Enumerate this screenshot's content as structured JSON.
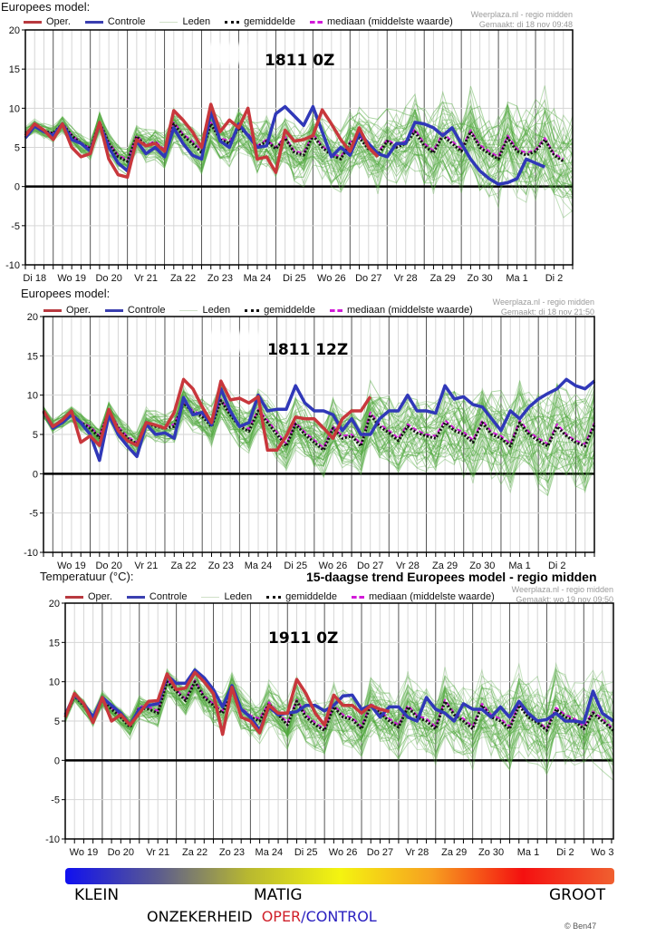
{
  "page": {
    "color_scale": {
      "colors": [
        "#1010f0",
        "#5a5a90",
        "#b8b830",
        "#f4f410",
        "#f7a020",
        "#f41010",
        "#f06030"
      ],
      "labels": {
        "low": "KLEIN",
        "mid": "MATIG",
        "high": "GROOT"
      },
      "caption_part1": "ONZEKERHEID",
      "caption_oper": "OPER",
      "caption_sep": "/",
      "caption_control": "CONTROL",
      "caption_oper_color": "#d0202a",
      "caption_control_color": "#2a20c0"
    },
    "copyright": "© Ben47"
  },
  "colors": {
    "oper": "#c8373c",
    "control": "#3038b8",
    "members": "#4fa83c",
    "mean": "#111111",
    "median": "#d21ad8"
  },
  "legend": {
    "oper": "Oper.",
    "control": "Controle",
    "members": "Leden",
    "mean": "gemiddelde",
    "median": "mediaan (middelste waarde)"
  },
  "chart_data": [
    {
      "type": "line",
      "header": "Europees model:",
      "run_label": "1811 0Z",
      "credit_line1": "Weerplaza.nl - regio midden",
      "credit_line2": "Gemaakt: di 18 nov 09:48",
      "title": "",
      "ylabel": "Temperatuur (°C)",
      "ylim": [
        -10,
        20
      ],
      "yticks": [
        20,
        15,
        10,
        5,
        0,
        -5,
        -10
      ],
      "grid": true,
      "legend_position": "top",
      "x_unit": "days since Di 18 00:00",
      "xlim": [
        0.25,
        15.0
      ],
      "day_labels": [
        "Di 18",
        "Wo 19",
        "Do 20",
        "Vr 21",
        "Za 22",
        "Zo 23",
        "Ma 24",
        "Di 25",
        "Wo 26",
        "Do 27",
        "Vr 28",
        "Za 29",
        "Zo 30",
        "Ma 1",
        "Di 2"
      ],
      "x": [
        0.25,
        0.5,
        0.75,
        1.0,
        1.25,
        1.5,
        1.75,
        2.0,
        2.25,
        2.5,
        2.75,
        3.0,
        3.25,
        3.5,
        3.75,
        4.0,
        4.25,
        4.5,
        4.75,
        5.0,
        5.25,
        5.5,
        5.75,
        6.0,
        6.25,
        6.5,
        6.75,
        7.0,
        7.25,
        7.5,
        7.75,
        8.0,
        8.25,
        8.5,
        8.75,
        9.0,
        9.25,
        9.5,
        9.75,
        10.0,
        10.25,
        10.5,
        10.75,
        11.0,
        11.25,
        11.5,
        11.75,
        12.0,
        12.25,
        12.5,
        12.75,
        13.0,
        13.25,
        13.5,
        13.75,
        14.0,
        14.25,
        14.5,
        14.75,
        15.0
      ],
      "series": [
        {
          "name": "Oper.",
          "values": [
            6.5,
            8.0,
            7.2,
            6.0,
            8.0,
            5.0,
            3.8,
            4.2,
            8.2,
            3.5,
            1.5,
            1.2,
            6.0,
            5.2,
            5.5,
            4.5,
            9.7,
            8.5,
            7.0,
            5.0,
            10.5,
            7.0,
            8.5,
            7.5,
            10.0,
            3.5,
            3.8,
            1.8,
            7.2,
            5.8,
            6.0,
            6.5,
            9.8,
            8.0,
            6.0,
            4.5,
            7.5,
            5.0,
            3.8,
            null,
            null,
            null,
            null,
            null,
            null,
            null,
            null,
            null,
            null,
            null,
            null,
            null,
            null,
            null,
            null,
            null,
            null,
            null,
            null,
            null
          ]
        },
        {
          "name": "Controle",
          "values": [
            6.2,
            7.7,
            7.0,
            6.5,
            8.0,
            6.0,
            5.5,
            4.5,
            8.0,
            5.0,
            3.0,
            2.0,
            5.8,
            4.2,
            5.0,
            3.8,
            7.5,
            5.5,
            4.0,
            3.5,
            9.6,
            5.8,
            5.0,
            8.0,
            6.5,
            5.0,
            5.2,
            9.3,
            10.2,
            9.0,
            7.8,
            10.2,
            7.0,
            3.8,
            5.0,
            4.0,
            6.8,
            5.5,
            4.2,
            3.8,
            5.5,
            5.5,
            8.2,
            8.0,
            7.5,
            6.5,
            7.5,
            5.5,
            3.5,
            2.0,
            1.0,
            0.3,
            0.5,
            1.0,
            3.5,
            3.0,
            2.5,
            null,
            null,
            null
          ]
        },
        {
          "name": "gemiddelde",
          "values": [
            6.8,
            7.7,
            7.1,
            6.8,
            8.0,
            6.5,
            5.5,
            4.8,
            8.2,
            5.5,
            3.8,
            3.2,
            6.4,
            5.2,
            5.6,
            4.5,
            8.0,
            6.5,
            5.5,
            4.3,
            8.0,
            6.0,
            5.5,
            7.5,
            6.6,
            5.0,
            5.8,
            4.8,
            6.2,
            4.3,
            4.0,
            6.5,
            5.0,
            4.0,
            3.5,
            5.5,
            6.2,
            4.8,
            4.0,
            5.8,
            5.0,
            5.5,
            7.0,
            5.2,
            4.3,
            6.5,
            5.5,
            4.5,
            7.0,
            5.0,
            4.2,
            3.5,
            6.2,
            4.5,
            4.0,
            4.5,
            6.0,
            4.0,
            3.2,
            null
          ]
        },
        {
          "name": "mediaan",
          "values": [
            6.8,
            7.8,
            7.1,
            6.8,
            8.1,
            6.6,
            5.6,
            4.9,
            8.2,
            5.6,
            4.0,
            3.4,
            6.5,
            5.3,
            5.8,
            4.7,
            8.2,
            6.7,
            5.8,
            4.6,
            8.2,
            6.2,
            5.8,
            7.6,
            6.8,
            5.2,
            6.0,
            5.0,
            6.4,
            4.5,
            4.3,
            6.7,
            5.2,
            4.2,
            3.8,
            5.7,
            6.5,
            5.0,
            4.3,
            6.0,
            5.3,
            5.8,
            7.3,
            5.5,
            4.6,
            6.8,
            5.8,
            4.8,
            7.2,
            5.3,
            4.5,
            3.8,
            6.5,
            4.8,
            4.3,
            4.7,
            6.2,
            4.2,
            3.5,
            null
          ]
        }
      ],
      "members": {
        "count": 50,
        "spread_start": 0.8,
        "spread_end": 7.0
      }
    },
    {
      "type": "line",
      "header": "Europees model:",
      "run_label": "1811 12Z",
      "credit_line1": "Weerplaza.nl - regio midden",
      "credit_line2": "Gemaakt: di 18 nov 21:50",
      "title": "",
      "ylabel": "Temperatuur (°C)",
      "ylim": [
        -10,
        20
      ],
      "yticks": [
        20,
        15,
        10,
        5,
        0,
        -5,
        -10
      ],
      "grid": true,
      "legend_position": "top",
      "x_unit": "days since Di 18 00:00",
      "xlim": [
        0.75,
        15.5
      ],
      "day_labels": [
        "",
        "Wo 19",
        "Do 20",
        "Vr 21",
        "Za 22",
        "Zo 23",
        "Ma 24",
        "Di 25",
        "Wo 26",
        "Do 27",
        "Vr 28",
        "Za 29",
        "Zo 30",
        "Ma 1",
        "Di 2"
      ],
      "x": [
        0.75,
        1.0,
        1.25,
        1.5,
        1.75,
        2.0,
        2.25,
        2.5,
        2.75,
        3.0,
        3.25,
        3.5,
        3.75,
        4.0,
        4.25,
        4.5,
        4.75,
        5.0,
        5.25,
        5.5,
        5.75,
        6.0,
        6.25,
        6.5,
        6.75,
        7.0,
        7.25,
        7.5,
        7.75,
        8.0,
        8.25,
        8.5,
        8.75,
        9.0,
        9.25,
        9.5,
        9.75,
        10.0,
        10.25,
        10.5,
        10.75,
        11.0,
        11.25,
        11.5,
        11.75,
        12.0,
        12.25,
        12.5,
        12.75,
        13.0,
        13.25,
        13.5,
        13.75,
        14.0,
        14.25,
        14.5,
        14.75,
        15.0,
        15.25,
        15.5
      ],
      "series": [
        {
          "name": "Oper.",
          "values": [
            8.0,
            6.0,
            6.8,
            8.0,
            4.0,
            4.8,
            3.6,
            8.2,
            5.5,
            4.2,
            3.6,
            6.5,
            6.2,
            5.8,
            7.8,
            12.0,
            10.8,
            8.5,
            6.5,
            11.8,
            9.4,
            9.6,
            9.0,
            9.8,
            3.0,
            3.0,
            4.8,
            7.2,
            7.0,
            7.0,
            5.8,
            4.5,
            7.0,
            8.0,
            8.0,
            9.8,
            null,
            null,
            null,
            null,
            null,
            null,
            null,
            null,
            null,
            null,
            null,
            null,
            null,
            null,
            null,
            null,
            null,
            null,
            null,
            null,
            null,
            null,
            null,
            null
          ]
        },
        {
          "name": "Controle",
          "values": [
            8.0,
            5.8,
            6.5,
            7.5,
            6.5,
            5.0,
            1.7,
            7.5,
            5.0,
            3.5,
            2.2,
            6.3,
            5.0,
            5.2,
            4.5,
            9.7,
            7.5,
            7.8,
            6.2,
            10.8,
            8.0,
            6.0,
            6.5,
            10.0,
            8.0,
            8.2,
            8.2,
            11.2,
            9.0,
            8.0,
            8.0,
            7.5,
            5.5,
            7.0,
            5.0,
            5.0,
            7.0,
            8.0,
            8.0,
            10.0,
            8.0,
            8.0,
            7.7,
            11.2,
            9.5,
            9.8,
            8.8,
            8.5,
            7.0,
            5.5,
            8.0,
            7.0,
            8.5,
            9.5,
            10.2,
            10.8,
            12.0,
            11.2,
            10.8,
            11.8
          ]
        },
        {
          "name": "gemiddelde",
          "values": [
            7.8,
            6.0,
            6.8,
            7.6,
            6.5,
            5.8,
            4.6,
            8.0,
            5.8,
            4.5,
            3.8,
            6.5,
            6.0,
            5.8,
            6.0,
            9.0,
            7.8,
            7.3,
            6.0,
            9.3,
            7.5,
            6.0,
            5.4,
            8.0,
            6.5,
            5.0,
            3.5,
            6.3,
            5.0,
            4.0,
            3.0,
            5.8,
            4.5,
            4.8,
            3.5,
            7.5,
            6.0,
            5.2,
            4.2,
            6.0,
            5.2,
            4.8,
            4.5,
            6.5,
            5.5,
            5.0,
            4.0,
            6.5,
            5.0,
            4.5,
            3.5,
            6.5,
            5.0,
            4.2,
            3.5,
            6.0,
            4.8,
            4.0,
            3.5,
            6.2
          ]
        },
        {
          "name": "mediaan",
          "values": [
            7.9,
            6.1,
            6.9,
            7.7,
            6.6,
            6.0,
            4.8,
            8.1,
            6.0,
            4.7,
            4.0,
            6.6,
            6.2,
            6.0,
            6.3,
            9.2,
            8.0,
            7.5,
            6.3,
            9.5,
            7.7,
            6.3,
            5.7,
            8.2,
            6.8,
            5.3,
            3.8,
            6.5,
            5.3,
            4.3,
            3.3,
            6.0,
            4.8,
            5.0,
            3.8,
            7.8,
            6.3,
            5.5,
            4.5,
            6.3,
            5.5,
            5.0,
            4.8,
            6.8,
            5.8,
            5.3,
            4.3,
            6.8,
            5.3,
            4.8,
            3.8,
            6.8,
            5.3,
            4.5,
            3.8,
            6.3,
            5.0,
            4.2,
            3.8,
            6.5
          ]
        }
      ],
      "members": {
        "count": 50,
        "spread_start": 0.8,
        "spread_end": 7.0
      }
    },
    {
      "type": "line",
      "header": "Temperatuur (°C):",
      "run_label": "1911 0Z",
      "credit_line1": "Weerplaza.nl - regio midden",
      "credit_line2": "Gemaakt: wo 19 nov 09:50",
      "title": "15-daagse trend Europees model - regio midden",
      "ylabel": "Temperatuur (°C)",
      "ylim": [
        -10,
        20
      ],
      "yticks": [
        20,
        15,
        10,
        5,
        0,
        -5,
        -10
      ],
      "grid": true,
      "legend_position": "top",
      "x_unit": "days since Di 18 00:00",
      "xlim": [
        1.0,
        15.8
      ],
      "day_labels": [
        "Wo 19",
        "Do 20",
        "Vr 21",
        "Za 22",
        "Zo 23",
        "Ma 24",
        "Di 25",
        "Wo 26",
        "Do 27",
        "Vr 28",
        "Za 29",
        "Zo 30",
        "Ma 1",
        "Di 2",
        "Wo 3"
      ],
      "x": [
        1.0,
        1.25,
        1.5,
        1.75,
        2.0,
        2.25,
        2.5,
        2.75,
        3.0,
        3.25,
        3.5,
        3.75,
        4.0,
        4.25,
        4.5,
        4.75,
        5.0,
        5.25,
        5.5,
        5.75,
        6.0,
        6.25,
        6.5,
        6.75,
        7.0,
        7.25,
        7.5,
        7.75,
        8.0,
        8.25,
        8.5,
        8.75,
        9.0,
        9.25,
        9.5,
        9.75,
        10.0,
        10.25,
        10.5,
        10.75,
        11.0,
        11.25,
        11.5,
        11.75,
        12.0,
        12.25,
        12.5,
        12.75,
        13.0,
        13.25,
        13.5,
        13.75,
        14.0,
        14.25,
        14.5,
        14.75,
        15.0,
        15.25,
        15.5,
        15.8
      ],
      "series": [
        {
          "name": "Oper.",
          "values": [
            5.5,
            8.5,
            7.2,
            4.8,
            8.0,
            5.0,
            5.8,
            4.5,
            6.0,
            7.5,
            7.6,
            11.0,
            9.0,
            9.2,
            11.2,
            10.0,
            8.5,
            3.3,
            9.3,
            5.5,
            5.0,
            3.5,
            7.0,
            6.0,
            6.0,
            10.3,
            8.5,
            6.0,
            4.5,
            8.3,
            7.0,
            7.0,
            6.0,
            7.0,
            6.5,
            6.2,
            null,
            null,
            null,
            null,
            null,
            null,
            null,
            null,
            null,
            null,
            null,
            null,
            null,
            null,
            null,
            null,
            null,
            null,
            null,
            null,
            null,
            null,
            null,
            null
          ]
        },
        {
          "name": "Controle",
          "values": [
            5.8,
            8.3,
            7.2,
            5.5,
            8.0,
            7.0,
            6.0,
            4.5,
            6.5,
            7.0,
            7.2,
            10.8,
            9.8,
            9.8,
            11.5,
            10.5,
            9.0,
            6.8,
            9.5,
            6.5,
            5.5,
            3.8,
            6.8,
            5.8,
            6.0,
            6.2,
            7.0,
            7.0,
            6.3,
            7.0,
            8.2,
            8.3,
            6.5,
            7.0,
            5.5,
            6.8,
            6.8,
            5.5,
            5.0,
            8.0,
            6.5,
            6.0,
            5.0,
            7.2,
            6.5,
            6.5,
            5.5,
            6.8,
            5.5,
            7.5,
            6.0,
            5.0,
            5.2,
            6.0,
            5.0,
            5.0,
            4.8,
            8.8,
            6.0,
            5.0
          ]
        },
        {
          "name": "gemiddelde",
          "values": [
            5.5,
            8.2,
            7.0,
            5.2,
            7.8,
            6.5,
            5.5,
            4.2,
            6.7,
            6.5,
            6.0,
            10.0,
            8.8,
            7.6,
            10.0,
            8.0,
            7.0,
            6.0,
            9.0,
            6.5,
            5.5,
            5.0,
            7.2,
            5.8,
            4.5,
            7.5,
            5.5,
            4.5,
            3.8,
            6.8,
            5.5,
            5.2,
            4.0,
            7.0,
            6.0,
            5.0,
            4.2,
            6.8,
            5.5,
            5.0,
            4.0,
            7.5,
            5.8,
            5.0,
            4.0,
            7.0,
            5.5,
            5.0,
            4.0,
            7.0,
            5.5,
            4.8,
            3.8,
            6.5,
            5.5,
            5.0,
            4.0,
            6.0,
            5.0,
            3.8
          ]
        },
        {
          "name": "mediaan",
          "values": [
            5.6,
            8.3,
            7.1,
            5.4,
            8.0,
            6.7,
            5.7,
            4.4,
            6.9,
            6.8,
            6.3,
            10.2,
            9.0,
            7.8,
            10.2,
            8.2,
            7.2,
            6.3,
            9.2,
            6.7,
            5.7,
            5.3,
            7.4,
            6.0,
            4.8,
            7.7,
            5.8,
            4.8,
            4.0,
            7.0,
            5.8,
            5.4,
            4.3,
            7.2,
            6.3,
            5.3,
            4.5,
            7.0,
            5.7,
            5.3,
            4.3,
            7.7,
            6.0,
            5.3,
            4.3,
            7.2,
            5.8,
            5.3,
            4.3,
            7.2,
            5.8,
            5.0,
            4.0,
            6.7,
            5.8,
            5.3,
            4.3,
            6.2,
            5.3,
            4.0
          ]
        }
      ],
      "members": {
        "count": 50,
        "spread_start": 0.8,
        "spread_end": 7.0
      }
    }
  ]
}
